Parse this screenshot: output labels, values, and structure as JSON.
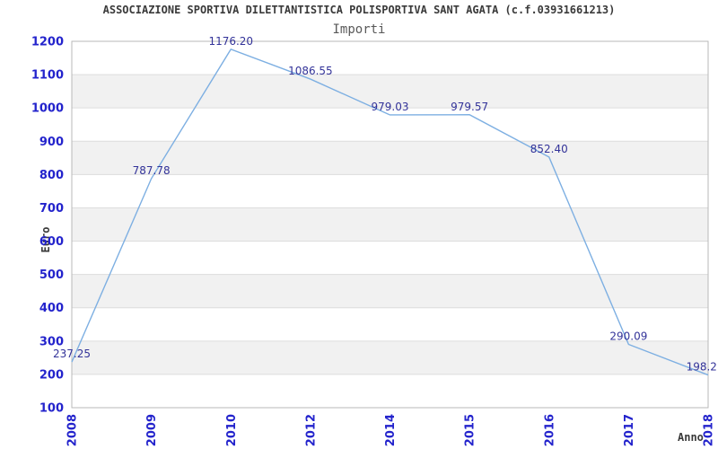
{
  "chart_data": {
    "type": "line",
    "title": "ASSOCIAZIONE SPORTIVA DILETTANTISTICA POLISPORTIVA SANT AGATA (c.f.03931661213)",
    "subtitle": "Importi",
    "xlabel": "Anno",
    "ylabel": "Euro",
    "categories": [
      "2008",
      "2009",
      "2010",
      "2012",
      "2014",
      "2015",
      "2016",
      "2017",
      "2018"
    ],
    "values": [
      237.25,
      787.78,
      1176.2,
      1086.55,
      979.03,
      979.57,
      852.4,
      290.09,
      198.2
    ],
    "point_labels": [
      "237.25",
      "787.78",
      "1176.20",
      "1086.55",
      "979.03",
      "979.57",
      "852.40",
      "290.09",
      "198.2"
    ],
    "ylim": [
      100,
      1200
    ],
    "ytick_step": 100,
    "yticks": [
      100,
      200,
      300,
      400,
      500,
      600,
      700,
      800,
      900,
      1000,
      1100,
      1200
    ],
    "grid": "horizontal-gridlines-with-alternating-bands",
    "legend": "none",
    "colors": {
      "line": "#7dafe2",
      "data_label": "#333399",
      "tick_label": "#2323cc",
      "band": "#f1f1f1",
      "gridline": "#dcdcdc",
      "border": "#b9b9b9",
      "title": "#3a3a3a",
      "subtitle": "#595959",
      "axis_title": "#3a3a3a",
      "background": "#ffffff"
    }
  }
}
